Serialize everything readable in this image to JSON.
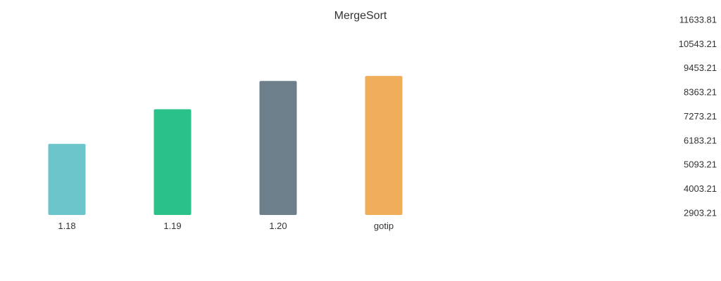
{
  "chart_data": {
    "type": "bar",
    "title": "MergeSort",
    "xlabel": "",
    "ylabel": "",
    "categories": [
      "1.18",
      "1.19",
      "1.20",
      "gotip"
    ],
    "values": [
      6037,
      7564,
      8808,
      9029
    ],
    "colors": [
      "#6cc5cb",
      "#2bc28a",
      "#6c7f8b",
      "#f1ae5a"
    ],
    "y_ticks": [
      "11633.81",
      "10543.21",
      "9453.21",
      "8363.21",
      "7273.21",
      "6183.21",
      "5093.21",
      "4003.21",
      "2903.21"
    ],
    "ylim": [
      2903.21,
      11633.81
    ],
    "y_axis_position": "right",
    "grid": false,
    "legend": false
  }
}
